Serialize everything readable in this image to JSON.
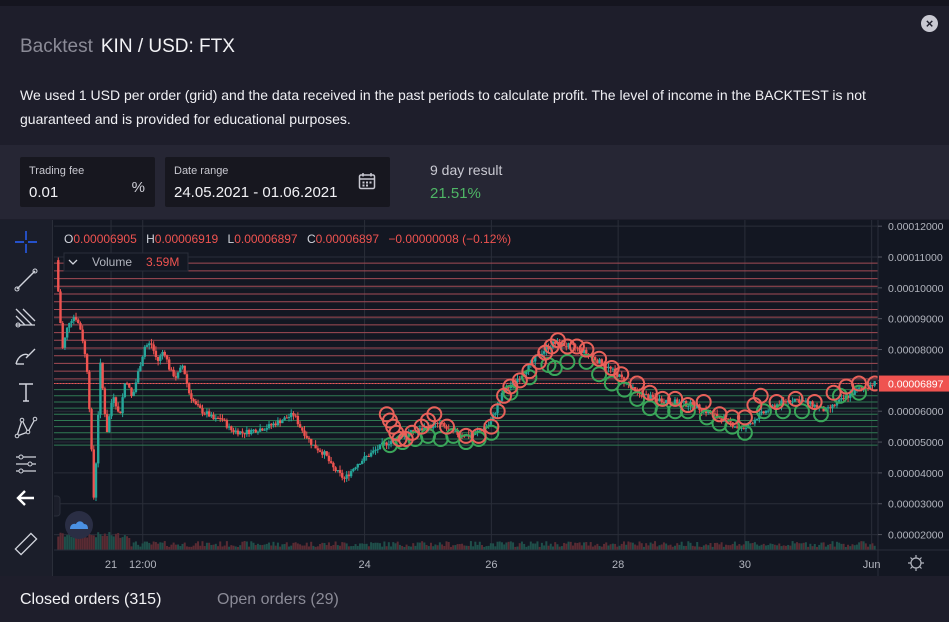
{
  "header": {
    "muted_title": "Backtest",
    "pair": "KIN / USD: FTX",
    "close_icon": "close-icon"
  },
  "description": "We used 1 USD per order (grid) and the data received in the past periods to calculate profit. The level of income in the BACKTEST is not guaranteed and is provided for educational purposes.",
  "controls": {
    "fee": {
      "label": "Trading fee",
      "value": "0.01",
      "unit": "%"
    },
    "range": {
      "label": "Date range",
      "value": "24.05.2021 - 01.06.2021",
      "icon": "calendar-icon"
    },
    "result": {
      "label": "9 day result",
      "value": "21.51%"
    }
  },
  "toolbar": [
    "crosshair-icon",
    "trend-line-icon",
    "pitchfork-icon",
    "brush-icon",
    "text-icon",
    "pattern-icon",
    "prediction-icon",
    "back-arrow-icon",
    "ruler-icon"
  ],
  "chart_data": {
    "type": "candlestick",
    "ohlc": {
      "o_label": "O",
      "o": "0.00006905",
      "h_label": "H",
      "h": "0.00006919",
      "l_label": "L",
      "l": "0.00006897",
      "c_label": "C",
      "c": "0.00006897",
      "change": "−0.00000008 (−0.12%)"
    },
    "volume": {
      "label": "Volume",
      "value": "3.59M"
    },
    "y_ticks": [
      "0.00012000",
      "0.00011000",
      "0.00010000",
      "0.00009000",
      "0.00008000",
      "0.00007000",
      "0.00006000",
      "0.00005000",
      "0.00004000",
      "0.00003000",
      "0.00002000"
    ],
    "y_tick_values": [
      12,
      11,
      10,
      9,
      8,
      7,
      6,
      5,
      4,
      3,
      2
    ],
    "last_price": "0.00006897",
    "last_price_value": 6.897,
    "x_ticks": [
      "21",
      "12:00",
      "24",
      "26",
      "28",
      "30",
      "Jun"
    ],
    "x_tick_positions": [
      20.0,
      20.5,
      24.0,
      26.0,
      28.0,
      30.0,
      32.0
    ],
    "x_range": [
      19.1,
      32.1
    ],
    "y_range": [
      1.5,
      12.2
    ],
    "grid_sell_levels": [
      10.8,
      10.55,
      10.3,
      10.05,
      9.8,
      9.55,
      9.3,
      9.05,
      8.8,
      8.55,
      8.3,
      8.05,
      7.8,
      7.55,
      7.3,
      7.05,
      6.9
    ],
    "grid_buy_levels": [
      6.7,
      6.5,
      6.3,
      6.1,
      5.9,
      5.7,
      5.5,
      5.3,
      5.1,
      4.9
    ],
    "price_path": [
      [
        19.15,
        10.9
      ],
      [
        19.25,
        8.0
      ],
      [
        19.35,
        8.9
      ],
      [
        19.45,
        9.1
      ],
      [
        19.55,
        8.6
      ],
      [
        19.65,
        7.2
      ],
      [
        19.75,
        3.0
      ],
      [
        19.85,
        7.5
      ],
      [
        19.95,
        5.3
      ],
      [
        20.05,
        6.6
      ],
      [
        20.15,
        5.8
      ],
      [
        20.25,
        7.1
      ],
      [
        20.35,
        6.4
      ],
      [
        20.45,
        7.3
      ],
      [
        20.55,
        8.1
      ],
      [
        20.65,
        8.2
      ],
      [
        20.75,
        7.6
      ],
      [
        20.85,
        8.0
      ],
      [
        20.95,
        7.3
      ],
      [
        21.05,
        7.1
      ],
      [
        21.15,
        7.5
      ],
      [
        21.25,
        6.6
      ],
      [
        21.35,
        6.2
      ],
      [
        21.45,
        6.0
      ],
      [
        21.55,
        5.9
      ],
      [
        21.65,
        5.7
      ],
      [
        21.75,
        5.8
      ],
      [
        21.9,
        5.4
      ],
      [
        22.1,
        5.3
      ],
      [
        22.3,
        5.4
      ],
      [
        22.5,
        5.5
      ],
      [
        22.7,
        5.7
      ],
      [
        22.9,
        5.9
      ],
      [
        23.0,
        5.5
      ],
      [
        23.2,
        4.9
      ],
      [
        23.4,
        4.6
      ],
      [
        23.5,
        4.2
      ],
      [
        23.7,
        3.8
      ],
      [
        23.9,
        4.3
      ],
      [
        24.1,
        4.6
      ],
      [
        24.3,
        4.9
      ],
      [
        24.6,
        5.2
      ],
      [
        24.9,
        5.4
      ],
      [
        25.2,
        5.6
      ],
      [
        25.4,
        5.3
      ],
      [
        25.7,
        5.2
      ],
      [
        26.0,
        5.6
      ],
      [
        26.2,
        6.6
      ],
      [
        26.5,
        7.2
      ],
      [
        26.8,
        7.9
      ],
      [
        27.0,
        8.2
      ],
      [
        27.3,
        8.1
      ],
      [
        27.5,
        7.9
      ],
      [
        27.8,
        7.5
      ],
      [
        28.0,
        7.2
      ],
      [
        28.3,
        6.6
      ],
      [
        28.6,
        6.4
      ],
      [
        28.9,
        6.3
      ],
      [
        29.2,
        6.2
      ],
      [
        29.5,
        5.9
      ],
      [
        29.8,
        5.6
      ],
      [
        30.0,
        5.4
      ],
      [
        30.2,
        5.8
      ],
      [
        30.5,
        6.2
      ],
      [
        30.8,
        6.4
      ],
      [
        31.1,
        6.2
      ],
      [
        31.3,
        6.0
      ],
      [
        31.5,
        6.3
      ],
      [
        31.8,
        6.7
      ],
      [
        32.05,
        6.9
      ]
    ],
    "sell_markers": [
      [
        24.35,
        5.9
      ],
      [
        24.4,
        5.7
      ],
      [
        24.45,
        5.5
      ],
      [
        24.5,
        5.3
      ],
      [
        24.55,
        5.1
      ],
      [
        24.65,
        5.1
      ],
      [
        24.75,
        5.3
      ],
      [
        24.9,
        5.5
      ],
      [
        25.0,
        5.7
      ],
      [
        25.1,
        5.9
      ],
      [
        25.3,
        5.5
      ],
      [
        25.6,
        5.2
      ],
      [
        25.8,
        5.2
      ],
      [
        26.0,
        5.5
      ],
      [
        26.1,
        6.0
      ],
      [
        26.2,
        6.5
      ],
      [
        26.3,
        6.8
      ],
      [
        26.45,
        7.0
      ],
      [
        26.6,
        7.3
      ],
      [
        26.75,
        7.6
      ],
      [
        26.85,
        7.9
      ],
      [
        26.95,
        8.1
      ],
      [
        27.05,
        8.3
      ],
      [
        27.2,
        8.1
      ],
      [
        27.35,
        8.1
      ],
      [
        27.5,
        8.0
      ],
      [
        27.7,
        7.7
      ],
      [
        27.9,
        7.4
      ],
      [
        28.05,
        7.2
      ],
      [
        28.3,
        6.9
      ],
      [
        28.5,
        6.6
      ],
      [
        28.7,
        6.4
      ],
      [
        28.9,
        6.4
      ],
      [
        29.1,
        6.2
      ],
      [
        29.35,
        6.3
      ],
      [
        29.6,
        5.9
      ],
      [
        29.8,
        5.8
      ],
      [
        30.0,
        5.8
      ],
      [
        30.15,
        6.2
      ],
      [
        30.25,
        6.5
      ],
      [
        30.5,
        6.3
      ],
      [
        30.8,
        6.4
      ],
      [
        31.1,
        6.3
      ],
      [
        31.4,
        6.6
      ],
      [
        31.6,
        6.8
      ],
      [
        31.8,
        6.9
      ],
      [
        32.05,
        6.9
      ]
    ],
    "buy_markers": [
      [
        24.4,
        4.9
      ],
      [
        24.6,
        5.0
      ],
      [
        24.8,
        5.1
      ],
      [
        25.0,
        5.2
      ],
      [
        25.2,
        5.1
      ],
      [
        25.4,
        5.2
      ],
      [
        25.6,
        5.0
      ],
      [
        25.8,
        5.1
      ],
      [
        26.0,
        5.3
      ],
      [
        26.3,
        6.6
      ],
      [
        26.6,
        7.1
      ],
      [
        26.9,
        7.5
      ],
      [
        27.0,
        7.4
      ],
      [
        27.2,
        7.6
      ],
      [
        27.5,
        7.6
      ],
      [
        27.7,
        7.2
      ],
      [
        27.9,
        6.9
      ],
      [
        28.1,
        6.7
      ],
      [
        28.3,
        6.4
      ],
      [
        28.5,
        6.1
      ],
      [
        28.7,
        6.0
      ],
      [
        28.9,
        6.0
      ],
      [
        29.1,
        6.0
      ],
      [
        29.4,
        5.8
      ],
      [
        29.6,
        5.6
      ],
      [
        29.8,
        5.5
      ],
      [
        30.0,
        5.3
      ],
      [
        30.3,
        6.0
      ],
      [
        30.6,
        6.0
      ],
      [
        30.9,
        6.0
      ],
      [
        31.2,
        5.9
      ],
      [
        31.5,
        6.5
      ],
      [
        31.8,
        6.6
      ]
    ],
    "colors": {
      "up": "#26a69a",
      "down": "#ef5350",
      "sell": "#e8615a",
      "buy": "#3aa65a",
      "sell_grid": "#a34b55",
      "buy_grid": "#2f7a52",
      "grid": "#2a2e39",
      "axis_text": "#b2b5be"
    }
  },
  "tabs": {
    "closed": "Closed orders (315)",
    "open": "Open orders (29)"
  }
}
